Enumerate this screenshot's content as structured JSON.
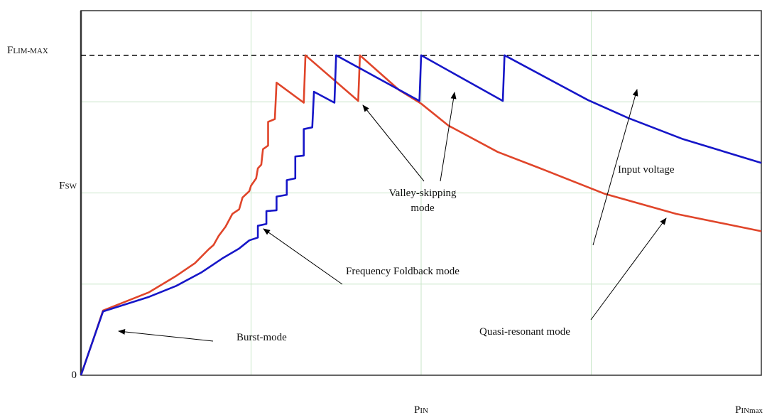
{
  "chart_data": {
    "type": "line",
    "title": "",
    "xlabel": "",
    "ylabel": "",
    "xlim": [
      0,
      4
    ],
    "ylim": [
      0,
      4
    ],
    "grid": true,
    "grid_color": "#c8e6c8",
    "x_ticks": [
      {
        "value": 2,
        "main": "P",
        "sub": "IN"
      },
      {
        "value": 4,
        "main": "P",
        "sub": "INmax"
      }
    ],
    "y_ticks": [
      {
        "value": 0,
        "main": "0",
        "sub": ""
      },
      {
        "value": 2,
        "main": "F",
        "sub": "SW"
      },
      {
        "value": 3.51,
        "main": "F",
        "sub": "LIM-MAX"
      }
    ],
    "reference_line": {
      "value": 3.51,
      "style": "dashed",
      "color": "#000000"
    },
    "series": [
      {
        "color": "#e0452a",
        "points": [
          [
            0,
            0
          ],
          [
            0.07,
            0.38
          ],
          [
            0.13,
            0.71
          ],
          [
            0.4,
            0.91
          ],
          [
            0.56,
            1.09
          ],
          [
            0.67,
            1.23
          ],
          [
            0.75,
            1.38
          ],
          [
            0.78,
            1.43
          ],
          [
            0.81,
            1.53
          ],
          [
            0.85,
            1.63
          ],
          [
            0.89,
            1.77
          ],
          [
            0.93,
            1.82
          ],
          [
            0.95,
            1.95
          ],
          [
            0.99,
            2.02
          ],
          [
            1.0,
            2.08
          ],
          [
            1.03,
            2.16
          ],
          [
            1.04,
            2.27
          ],
          [
            1.06,
            2.31
          ],
          [
            1.07,
            2.48
          ],
          [
            1.1,
            2.52
          ],
          [
            1.1,
            2.78
          ],
          [
            1.14,
            2.81
          ],
          [
            1.15,
            3.21
          ],
          [
            1.31,
            2.99
          ],
          [
            1.32,
            3.51
          ],
          [
            1.63,
            3.01
          ],
          [
            1.64,
            3.51
          ],
          [
            1.87,
            3.13
          ],
          [
            2.0,
            2.98
          ],
          [
            2.16,
            2.74
          ],
          [
            2.45,
            2.45
          ],
          [
            2.7,
            2.27
          ],
          [
            3.08,
            1.99
          ],
          [
            3.5,
            1.77
          ],
          [
            4.0,
            1.58
          ]
        ]
      },
      {
        "color": "#1616c8",
        "points": [
          [
            0,
            0
          ],
          [
            0.07,
            0.38
          ],
          [
            0.13,
            0.7
          ],
          [
            0.4,
            0.86
          ],
          [
            0.56,
            0.98
          ],
          [
            0.71,
            1.13
          ],
          [
            0.83,
            1.28
          ],
          [
            0.93,
            1.39
          ],
          [
            0.99,
            1.48
          ],
          [
            1.04,
            1.51
          ],
          [
            1.04,
            1.64
          ],
          [
            1.09,
            1.66
          ],
          [
            1.09,
            1.8
          ],
          [
            1.15,
            1.81
          ],
          [
            1.15,
            1.96
          ],
          [
            1.21,
            1.98
          ],
          [
            1.21,
            2.14
          ],
          [
            1.26,
            2.16
          ],
          [
            1.26,
            2.4
          ],
          [
            1.31,
            2.41
          ],
          [
            1.31,
            2.7
          ],
          [
            1.36,
            2.72
          ],
          [
            1.37,
            3.11
          ],
          [
            1.49,
            2.99
          ],
          [
            1.5,
            3.51
          ],
          [
            1.99,
            3.01
          ],
          [
            2.0,
            3.51
          ],
          [
            2.48,
            3.01
          ],
          [
            2.49,
            3.51
          ],
          [
            2.98,
            3.02
          ],
          [
            3.22,
            2.82
          ],
          [
            3.54,
            2.59
          ],
          [
            4.0,
            2.33
          ]
        ]
      }
    ],
    "annotations": {
      "valley_line1": "Valley-skipping",
      "valley_line2": "mode",
      "input_voltage": "Input voltage",
      "foldback": "Frequency Foldback mode",
      "burst": "Burst-mode",
      "quasi_resonant": "Quasi-resonant mode"
    }
  }
}
